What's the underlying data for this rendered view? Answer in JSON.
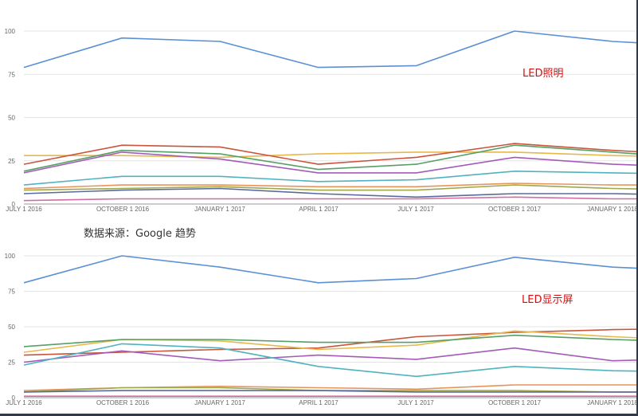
{
  "source_note": "数据来源：Google 趋势",
  "frame_color": "#2f3a4a",
  "chart_data": [
    {
      "type": "line",
      "title": "",
      "annotation": "LED照明",
      "annotation_color": "#d01010",
      "x_ticks": [
        "JULY 1 2016",
        "OCTOBER 1 2016",
        "JANUARY 1 2017",
        "APRIL 1 2017",
        "JULY 1 2017",
        "OCTOBER 1 2017",
        "JANUARY 1 2018"
      ],
      "y_ticks": [
        0,
        25,
        50,
        75,
        100
      ],
      "ylim": [
        0,
        100
      ],
      "grid": true,
      "series": [
        {
          "color": "#5b8fd6",
          "values": [
            79,
            96,
            94,
            79,
            80,
            100,
            94,
            91
          ]
        },
        {
          "color": "#e8b84a",
          "values": [
            28,
            28,
            27,
            29,
            30,
            30,
            28,
            27
          ]
        },
        {
          "color": "#c9553d",
          "values": [
            23,
            34,
            33,
            23,
            27,
            35,
            31,
            28
          ]
        },
        {
          "color": "#55a065",
          "values": [
            19,
            31,
            29,
            20,
            23,
            34,
            30,
            26
          ]
        },
        {
          "color": "#a45bb8",
          "values": [
            18,
            30,
            26,
            18,
            18,
            27,
            23,
            21
          ]
        },
        {
          "color": "#4fb3bf",
          "values": [
            11,
            16,
            16,
            13,
            14,
            19,
            18,
            17
          ]
        },
        {
          "color": "#e6955a",
          "values": [
            9,
            11,
            11,
            10,
            10,
            12,
            11,
            11
          ]
        },
        {
          "color": "#9fa84a",
          "values": [
            8,
            9,
            10,
            8,
            8,
            11,
            9,
            8
          ]
        },
        {
          "color": "#5a6a9a",
          "values": [
            6,
            8,
            9,
            6,
            4,
            6,
            6,
            5
          ]
        },
        {
          "color": "#d36fa0",
          "values": [
            2,
            3,
            3,
            3,
            3,
            4,
            3,
            3
          ]
        }
      ]
    },
    {
      "type": "line",
      "title": "",
      "annotation": "LED显示屏",
      "annotation_color": "#d01010",
      "x_ticks": [
        "JULY 1 2016",
        "OCTOBER 1 2016",
        "JANUARY 1 2017",
        "APRIL 1 2017",
        "JULY 1 2017",
        "OCTOBER 1 2017",
        "JANUARY 1 2018"
      ],
      "y_ticks": [
        0,
        25,
        50,
        75,
        100
      ],
      "ylim": [
        0,
        100
      ],
      "grid": true,
      "series": [
        {
          "color": "#5b8fd6",
          "values": [
            81,
            100,
            92,
            81,
            84,
            99,
            92,
            89
          ]
        },
        {
          "color": "#c9553d",
          "values": [
            30,
            32,
            34,
            35,
            43,
            46,
            48,
            49
          ]
        },
        {
          "color": "#e8b84a",
          "values": [
            32,
            41,
            40,
            34,
            37,
            47,
            43,
            40
          ]
        },
        {
          "color": "#55a065",
          "values": [
            36,
            41,
            41,
            39,
            39,
            44,
            41,
            39
          ]
        },
        {
          "color": "#a45bb8",
          "values": [
            25,
            33,
            26,
            30,
            27,
            35,
            26,
            28
          ]
        },
        {
          "color": "#4fb3bf",
          "values": [
            23,
            38,
            35,
            22,
            15,
            22,
            19,
            18
          ]
        },
        {
          "color": "#e6955a",
          "values": [
            5,
            7,
            8,
            7,
            6,
            9,
            9,
            9
          ]
        },
        {
          "color": "#9fa84a",
          "values": [
            4,
            7,
            7,
            5,
            5,
            5,
            4,
            4
          ]
        },
        {
          "color": "#5a6a9a",
          "values": [
            4,
            5,
            5,
            5,
            4,
            4,
            4,
            4
          ]
        },
        {
          "color": "#d36fa0",
          "values": [
            1,
            1,
            1,
            1,
            1,
            1,
            1,
            1
          ]
        }
      ]
    }
  ]
}
